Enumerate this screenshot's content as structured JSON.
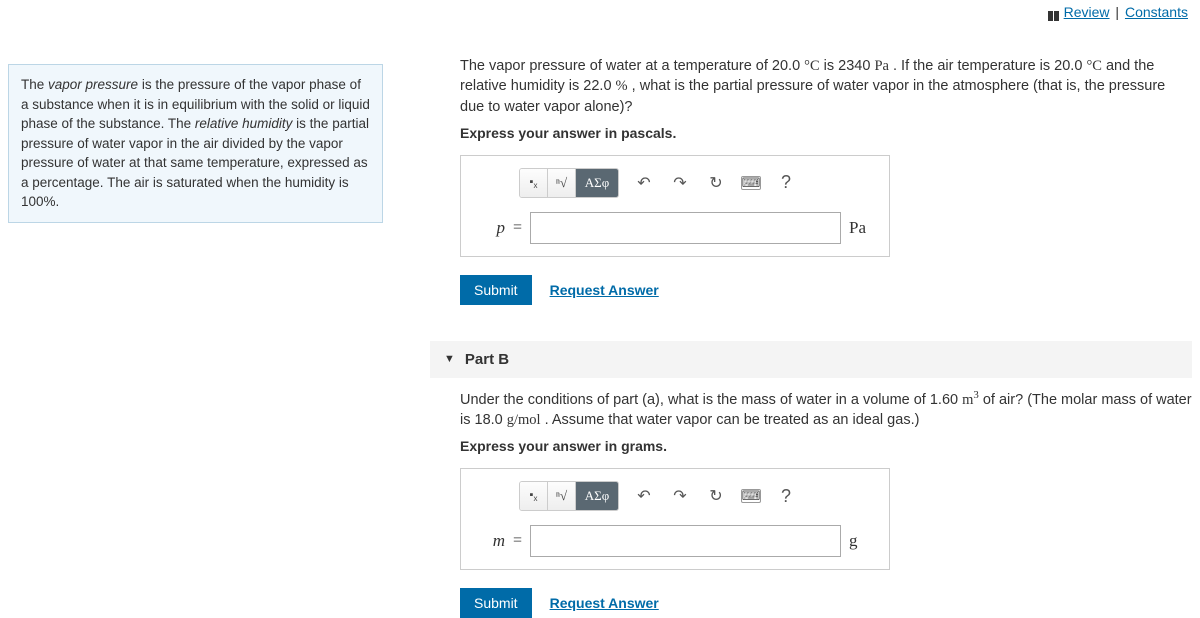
{
  "topLinks": {
    "review": "Review",
    "constants": "Constants"
  },
  "sidebar": {
    "html": "The <em>vapor pressure</em> is the pressure of the vapor phase of a substance when it is in equilibrium with the solid or liquid phase of the substance. The <em>relative humidity</em> is the partial pressure of water vapor in the air divided by the vapor pressure of water at that same temperature, expressed as a percentage. The air is saturated when the humidity is 100%."
  },
  "partA": {
    "prompt_html": "The vapor pressure of water at a temperature of 20.0 <span class='unit'>°C</span> is 2340 <span class='unit'>Pa</span> . If the air temperature is 20.0 <span class='unit'>°C</span> and the relative humidity is 22.0 <span class='unit'>%</span> , what is the partial pressure of water vapor in the atmosphere (that is, the pressure due to water vapor alone)?",
    "instruction": "Express your answer in pascals.",
    "variable": "p",
    "unit": "Pa",
    "value": "",
    "submit": "Submit",
    "request": "Request Answer"
  },
  "partB": {
    "header": "Part B",
    "prompt_html": "Under the conditions of part (a), what is the mass of water in a volume of 1.60 <span class='unit'>m<sup>3</sup></span> of air? (The molar mass of water is 18.0 <span class='unit'>g/mol</span> . Assume that water vapor can be treated as an ideal gas.)",
    "instruction": "Express your answer in grams.",
    "variable": "m",
    "unit": "g",
    "value": "",
    "submit": "Submit",
    "request": "Request Answer"
  },
  "toolbar": {
    "templates_icon": "▪",
    "sqrt_icon": "√",
    "greek": "ΑΣφ",
    "undo": "↶",
    "redo": "↷",
    "reset": "↻",
    "keyboard": "⌨",
    "help": "?"
  },
  "colors": {
    "link": "#006ba8",
    "sidebar_bg": "#f0f7fc",
    "sidebar_border": "#bcd6e6",
    "submit_bg": "#006ba8"
  }
}
